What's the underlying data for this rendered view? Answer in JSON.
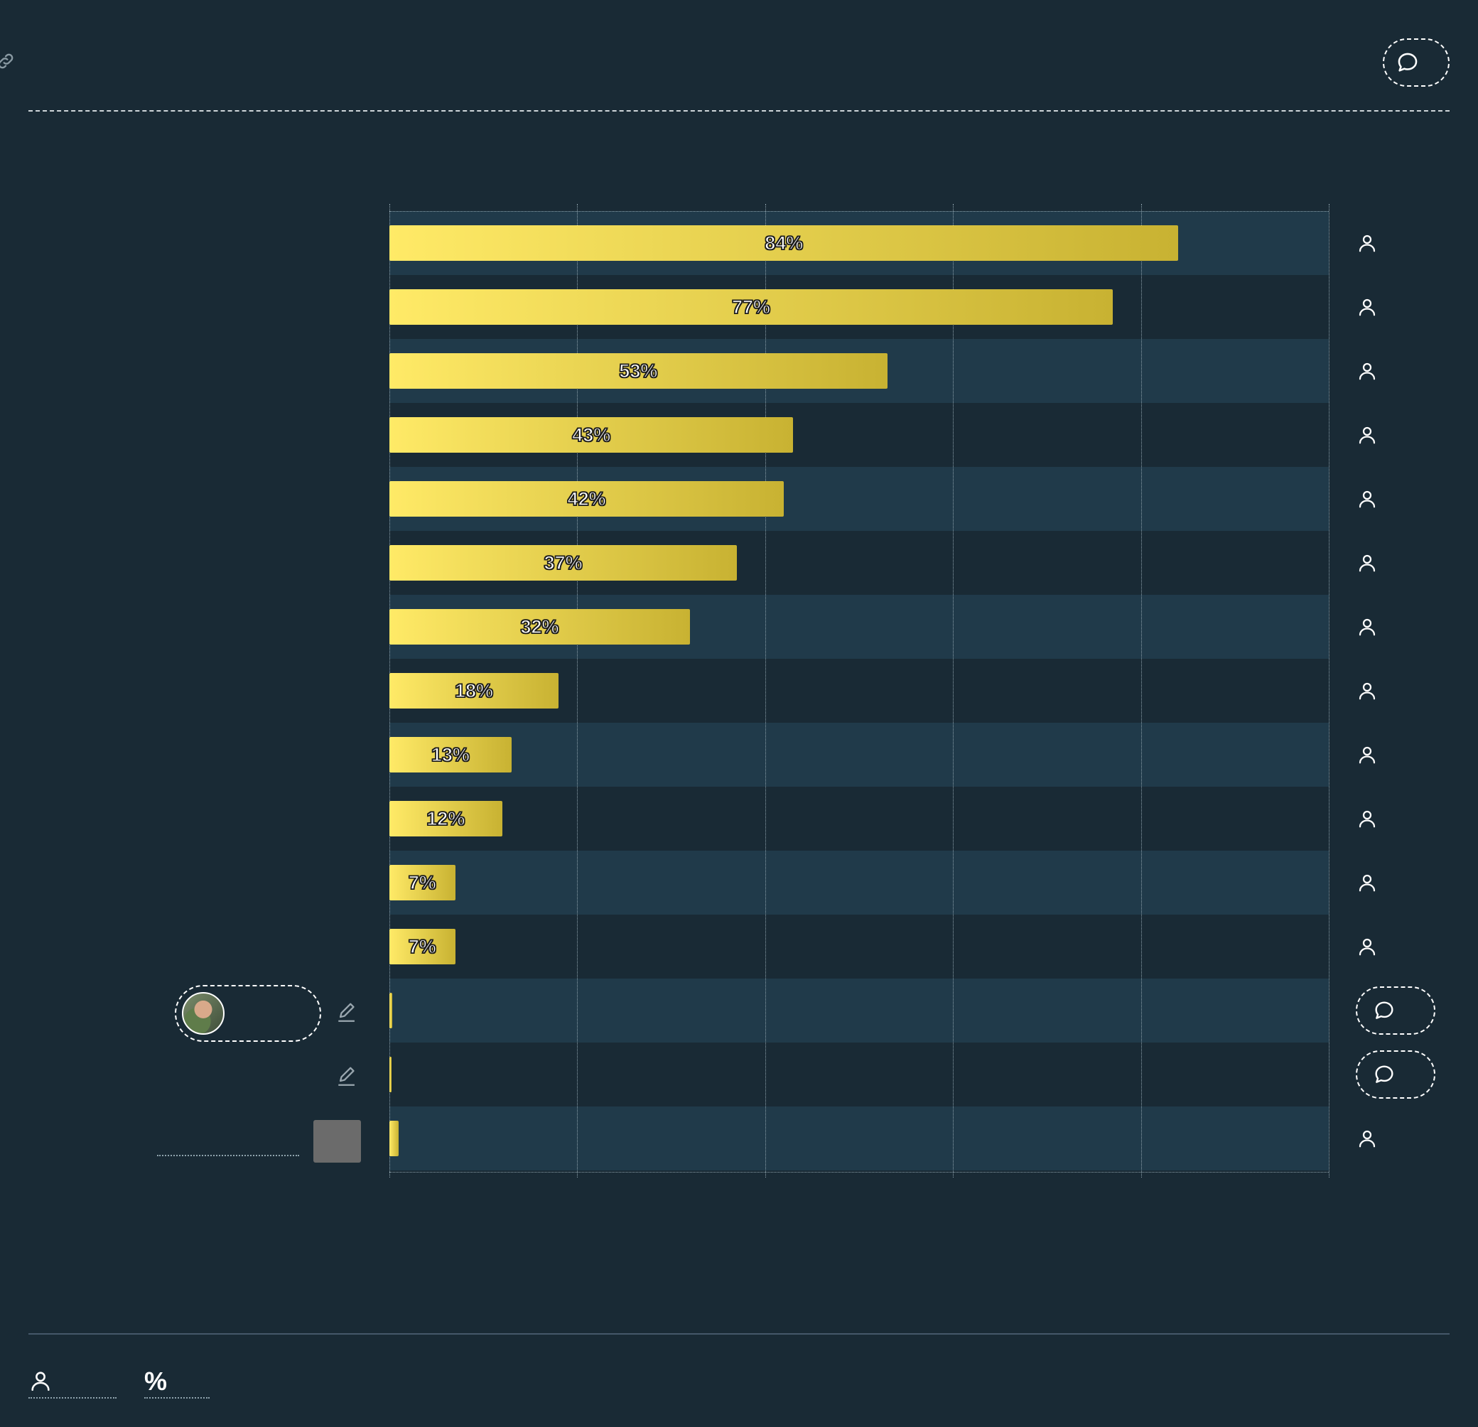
{
  "colors": {
    "background": "#192a35",
    "band": "#203a4a",
    "bar_start": "#ffea67",
    "bar_end": "#c8b232"
  },
  "header": {
    "link_icon": "link-icon",
    "comment_icon": "comment-icon"
  },
  "chart_data": {
    "type": "bar",
    "orientation": "horizontal",
    "xlim": [
      0,
      100
    ],
    "grid": true,
    "values": [
      84,
      77,
      53,
      43,
      42,
      37,
      32,
      18,
      13,
      12,
      7,
      7,
      0.3,
      0.2,
      1
    ],
    "labels": [
      "84%",
      "77%",
      "53%",
      "43%",
      "42%",
      "37%",
      "32%",
      "18%",
      "13%",
      "12%",
      "7%",
      "7%",
      "",
      "",
      ""
    ]
  },
  "rows_right": [
    "user-icon",
    "user-icon",
    "user-icon",
    "user-icon",
    "user-icon",
    "user-icon",
    "user-icon",
    "user-icon",
    "user-icon",
    "user-icon",
    "user-icon",
    "user-icon",
    "comment-icon",
    "comment-icon",
    "user-icon"
  ],
  "footer": {
    "user_icon": "user-icon",
    "percent_symbol": "%"
  }
}
